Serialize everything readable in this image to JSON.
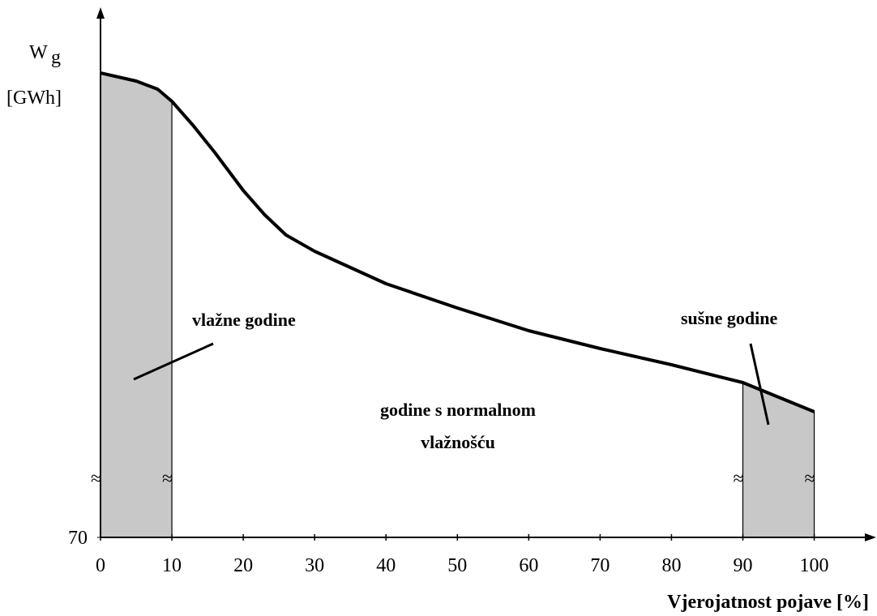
{
  "chart_data": {
    "type": "line",
    "ylabel": {
      "main": "W",
      "sub": "g",
      "unit": "[GWh]"
    },
    "xlabel": "Vjerojatnost pojave [%]",
    "x": [
      0,
      5,
      8,
      10,
      13,
      16,
      20,
      23,
      26,
      30,
      40,
      50,
      60,
      70,
      80,
      90,
      95,
      100
    ],
    "series": [
      {
        "color": "#000000",
        "values": [
          127.3,
          126.3,
          125.3,
          123.8,
          120.8,
          117.5,
          112.8,
          109.8,
          107.3,
          105.3,
          101.3,
          98.3,
          95.5,
          93.3,
          91.3,
          89.1,
          87.3,
          85.5
        ]
      }
    ],
    "xlim": [
      0,
      108
    ],
    "ylim": [
      70,
      134
    ],
    "xticks": [
      0,
      10,
      20,
      30,
      40,
      50,
      60,
      70,
      80,
      90,
      100
    ],
    "yticks": [
      70
    ],
    "shaded": [
      [
        0,
        10
      ],
      [
        90,
        100
      ]
    ],
    "shade_color": "#c8c8c8",
    "annotations": {
      "wet": "vlažne godine",
      "dry": "sušne godine",
      "normal": [
        "godine s normalnom",
        "vlažnošću"
      ]
    }
  }
}
